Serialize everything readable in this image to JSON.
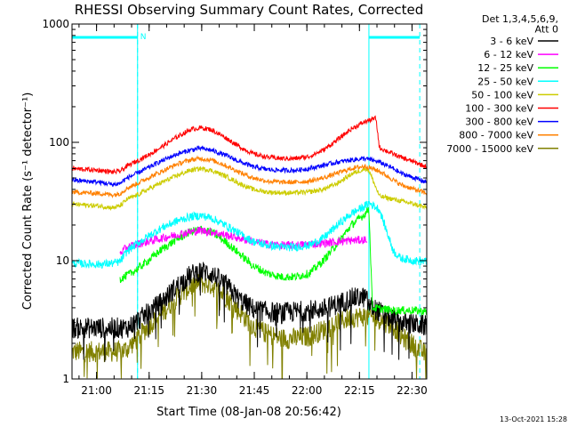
{
  "chart_data": {
    "type": "line",
    "title": "RHESSI Observing Summary Count Rates, Corrected",
    "xlabel": "Start Time (08-Jan-08 20:56:42)",
    "ylabel": "Corrected Count Rate (s⁻¹ detector⁻¹)",
    "yscale": "log",
    "ylim": [
      1,
      1000
    ],
    "xlim_minutes": [
      -3.7,
      97.5
    ],
    "x_ticks": [
      {
        "m": 3.3,
        "label": "21:00"
      },
      {
        "m": 18.3,
        "label": "21:15"
      },
      {
        "m": 33.3,
        "label": "21:30"
      },
      {
        "m": 48.3,
        "label": "21:45"
      },
      {
        "m": 63.3,
        "label": "22:00"
      },
      {
        "m": 78.3,
        "label": "22:15"
      },
      {
        "m": 93.3,
        "label": "22:30"
      }
    ],
    "y_ticks": [
      {
        "v": 1,
        "label": "1"
      },
      {
        "v": 10,
        "label": "10"
      },
      {
        "v": 100,
        "label": "100"
      },
      {
        "v": 1000,
        "label": "1000"
      }
    ],
    "legend": {
      "header": [
        "Det 1,3,4,5,6,9,",
        "Att 0"
      ],
      "placement": "right"
    },
    "night_intervals": [
      [
        -3.7,
        15.0
      ],
      [
        81.0,
        97.5
      ]
    ],
    "saa_bars": [
      [
        -3.7,
        15.0
      ],
      [
        81.0,
        95.5
      ]
    ],
    "saa_label": "N",
    "dashed_lines": [
      15.0,
      95.5
    ],
    "timestamp": "13-Oct-2021 15:28",
    "series": [
      {
        "name": "3 - 6 keV",
        "color": "#000000",
        "x": [
          -3.7,
          12,
          15,
          18,
          22,
          26,
          30,
          33,
          36,
          40,
          44,
          48,
          52,
          56,
          60,
          64,
          68,
          72,
          76,
          80,
          81,
          84,
          87,
          90,
          94,
          97.5
        ],
        "y": [
          2.7,
          2.7,
          3.1,
          3.6,
          4.5,
          6.0,
          7.5,
          8.2,
          7.8,
          6.3,
          4.7,
          3.9,
          3.7,
          3.6,
          3.7,
          3.8,
          3.9,
          4.3,
          4.8,
          4.9,
          4.2,
          3.7,
          3.3,
          3.0,
          2.9,
          2.8
        ]
      },
      {
        "name": "6 - 12 keV",
        "color": "#ff00ff",
        "x": [
          10,
          12,
          15,
          18,
          22,
          26,
          30,
          33,
          36,
          40,
          44,
          48,
          52,
          56,
          60,
          64,
          68,
          72,
          76,
          80,
          80.5
        ],
        "y": [
          11.5,
          13,
          13.8,
          14.5,
          15.5,
          16.5,
          17.5,
          18,
          17.5,
          16.5,
          15.5,
          14.5,
          13.8,
          13.5,
          13.5,
          13.8,
          14,
          14.5,
          14.8,
          15,
          15
        ]
      },
      {
        "name": "12 - 25 keV",
        "color": "#00ff00",
        "x": [
          10,
          12,
          15,
          18,
          22,
          26,
          30,
          33,
          36,
          40,
          44,
          48,
          52,
          56,
          60,
          64,
          68,
          72,
          76,
          80,
          81,
          82,
          85,
          88,
          90,
          94,
          97.5
        ],
        "y": [
          7.0,
          7.5,
          8.5,
          10,
          12.5,
          15,
          17.5,
          18.5,
          17.5,
          14.5,
          11.5,
          9.0,
          7.8,
          7.3,
          7.3,
          7.8,
          10,
          14,
          20,
          25,
          28,
          4.0,
          3.9,
          3.8,
          3.8,
          3.8,
          3.7
        ]
      },
      {
        "name": "25 - 50 keV",
        "color": "#00ffff",
        "x": [
          -3.7,
          4,
          8,
          10,
          12,
          15,
          18,
          22,
          26,
          30,
          33,
          36,
          40,
          44,
          48,
          52,
          56,
          60,
          64,
          68,
          72,
          76,
          80,
          81,
          84,
          88,
          90,
          94,
          97.5
        ],
        "y": [
          9.5,
          9.3,
          9.5,
          9.8,
          12,
          14,
          16,
          19,
          21.5,
          23.5,
          24,
          23,
          20,
          17,
          14.5,
          13.5,
          13,
          13,
          13.5,
          15.5,
          20,
          25,
          29,
          31,
          27,
          12,
          10.5,
          10,
          9.8
        ]
      },
      {
        "name": "50 - 100 keV",
        "color": "#cccc00",
        "x": [
          -3.7,
          4,
          8,
          10,
          12,
          15,
          18,
          22,
          26,
          30,
          33,
          36,
          40,
          44,
          48,
          52,
          56,
          60,
          64,
          68,
          72,
          76,
          80,
          81,
          84,
          88,
          90,
          94,
          97.5
        ],
        "y": [
          30,
          29,
          28,
          29,
          33,
          36,
          40,
          46,
          52,
          58,
          60,
          58,
          52,
          45,
          40,
          38,
          37.5,
          37.5,
          38,
          40,
          45,
          54,
          60,
          58,
          35,
          33,
          32,
          30,
          28
        ]
      },
      {
        "name": "100 - 300 keV",
        "color": "#ff0000",
        "x": [
          -3.7,
          4,
          8,
          10,
          12,
          15,
          18,
          22,
          26,
          30,
          33,
          36,
          40,
          44,
          48,
          52,
          56,
          60,
          64,
          68,
          72,
          76,
          80,
          83,
          84,
          87,
          90,
          94,
          97.5
        ],
        "y": [
          60,
          58,
          56,
          57,
          63,
          70,
          78,
          92,
          110,
          128,
          133,
          128,
          110,
          92,
          80,
          75,
          73,
          73,
          76,
          86,
          105,
          130,
          150,
          160,
          90,
          82,
          75,
          68,
          62
        ]
      },
      {
        "name": "300 - 800 keV",
        "color": "#0000ff",
        "x": [
          -3.7,
          4,
          8,
          10,
          12,
          15,
          18,
          22,
          26,
          30,
          33,
          36,
          40,
          44,
          48,
          52,
          56,
          60,
          64,
          68,
          72,
          76,
          80,
          84,
          88,
          90,
          94,
          97.5
        ],
        "y": [
          48,
          46,
          44,
          45,
          50,
          55,
          61,
          70,
          79,
          86,
          89,
          86,
          78,
          69,
          62,
          59,
          58,
          58,
          60,
          64,
          68,
          71,
          73,
          68,
          60,
          55,
          50,
          46
        ]
      },
      {
        "name": "800 - 7000 keV",
        "color": "#ff8000",
        "x": [
          -3.7,
          4,
          8,
          10,
          12,
          15,
          18,
          22,
          26,
          30,
          33,
          36,
          40,
          44,
          48,
          52,
          56,
          60,
          64,
          68,
          72,
          76,
          80,
          84,
          88,
          90,
          94,
          97.5
        ],
        "y": [
          38,
          37,
          36,
          37,
          41,
          45,
          50,
          57,
          65,
          71,
          73,
          71,
          64,
          56,
          50,
          47,
          46,
          46,
          47,
          50,
          55,
          60,
          63,
          57,
          48,
          44,
          40,
          37
        ]
      },
      {
        "name": "7000 - 15000 keV",
        "color": "#808000",
        "x": [
          -3.7,
          5,
          10,
          12,
          15,
          18,
          22,
          26,
          30,
          33,
          36,
          40,
          44,
          48,
          52,
          56,
          60,
          64,
          68,
          72,
          76,
          80,
          84,
          88,
          90,
          94,
          97.5
        ],
        "y": [
          1.7,
          1.7,
          1.7,
          1.8,
          2.2,
          2.8,
          3.6,
          4.8,
          6.0,
          6.5,
          6.2,
          5.0,
          3.7,
          2.8,
          2.4,
          2.2,
          2.2,
          2.3,
          2.6,
          3.0,
          3.3,
          3.4,
          3.2,
          2.8,
          2.3,
          1.9,
          1.6
        ]
      }
    ]
  }
}
